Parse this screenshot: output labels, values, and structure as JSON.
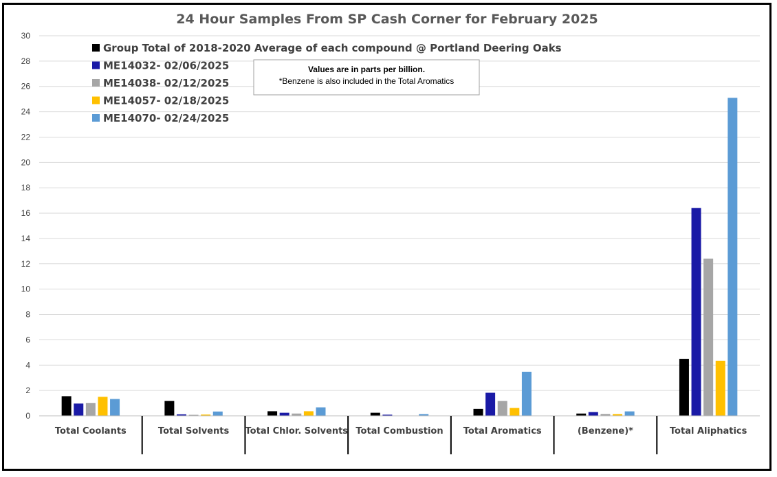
{
  "chart_data": {
    "type": "bar",
    "title": "24 Hour Samples From SP Cash Corner for February 2025",
    "xlabel": "",
    "ylabel": "",
    "ylim": [
      0,
      30
    ],
    "yticks": [
      0,
      2,
      4,
      6,
      8,
      10,
      12,
      14,
      16,
      18,
      20,
      22,
      24,
      26,
      28,
      30
    ],
    "grid": true,
    "legend_position": "top-left",
    "categories": [
      "Total Coolants",
      "Total Solvents",
      "Total Chlor. Solvents",
      "Total Combustion",
      "Total Aromatics",
      "(Benzene)*",
      "Total Aliphatics"
    ],
    "series": [
      {
        "name": "Group Total of 2018-2020 Average of each compound @ Portland Deering Oaks",
        "color": "#000000",
        "values": [
          1.55,
          1.18,
          0.36,
          0.24,
          0.55,
          0.18,
          4.5
        ]
      },
      {
        "name": "ME14032- 02/06/2025",
        "color": "#1a1aa6",
        "values": [
          0.97,
          0.12,
          0.24,
          0.09,
          1.82,
          0.3,
          16.4
        ]
      },
      {
        "name": "ME14038- 02/12/2025",
        "color": "#a6a6a6",
        "values": [
          1.02,
          0.08,
          0.18,
          0.0,
          1.18,
          0.15,
          12.4
        ]
      },
      {
        "name": "ME14057- 02/18/2025",
        "color": "#ffc000",
        "values": [
          1.5,
          0.1,
          0.36,
          0.0,
          0.62,
          0.14,
          4.35
        ]
      },
      {
        "name": "ME14070- 02/24/2025",
        "color": "#5b9bd5",
        "values": [
          1.33,
          0.34,
          0.67,
          0.14,
          3.48,
          0.35,
          25.1
        ]
      }
    ],
    "annotations": [
      "Values are in parts per billion.",
      "*Benzene is also included in the Total Aromatics"
    ]
  }
}
